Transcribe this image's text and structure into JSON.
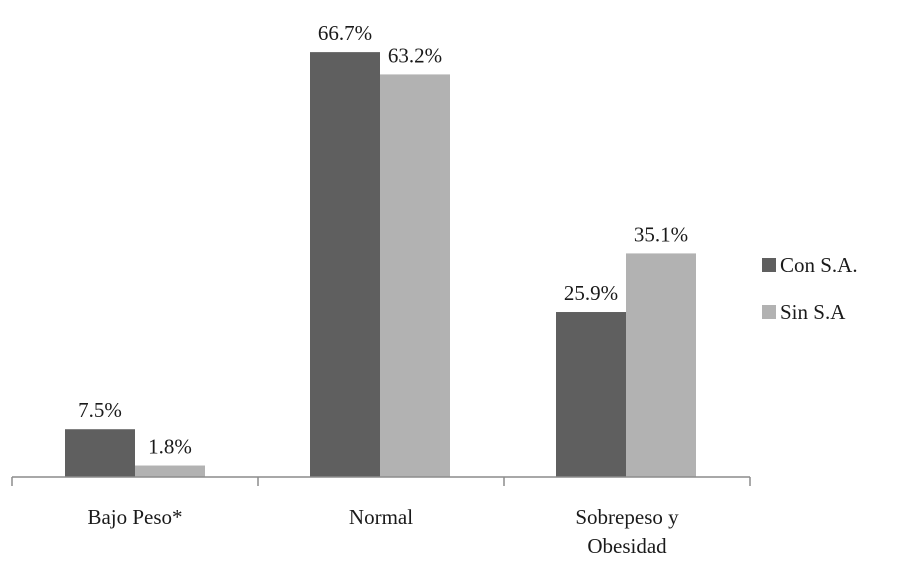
{
  "chart_data": {
    "type": "bar",
    "title": "",
    "xlabel": "",
    "ylabel": "",
    "ylim": [
      0,
      70
    ],
    "grid": false,
    "legend_position": "right",
    "categories": [
      "Bajo Peso*",
      "Normal",
      "Sobrepeso y Obesidad"
    ],
    "category_lines": [
      [
        "Bajo Peso*"
      ],
      [
        "Normal"
      ],
      [
        "Sobrepeso y",
        "Obesidad"
      ]
    ],
    "series": [
      {
        "name": "Con S.A.",
        "color": "#5f5f5f",
        "values": [
          7.5,
          66.7,
          25.9
        ],
        "labels": [
          "7.5%",
          "66.7%",
          "25.9%"
        ]
      },
      {
        "name": "Sin S.A",
        "color": "#b2b2b2",
        "values": [
          1.8,
          63.2,
          35.1
        ],
        "labels": [
          "1.8%",
          "63.2%",
          "35.1%"
        ]
      }
    ]
  }
}
